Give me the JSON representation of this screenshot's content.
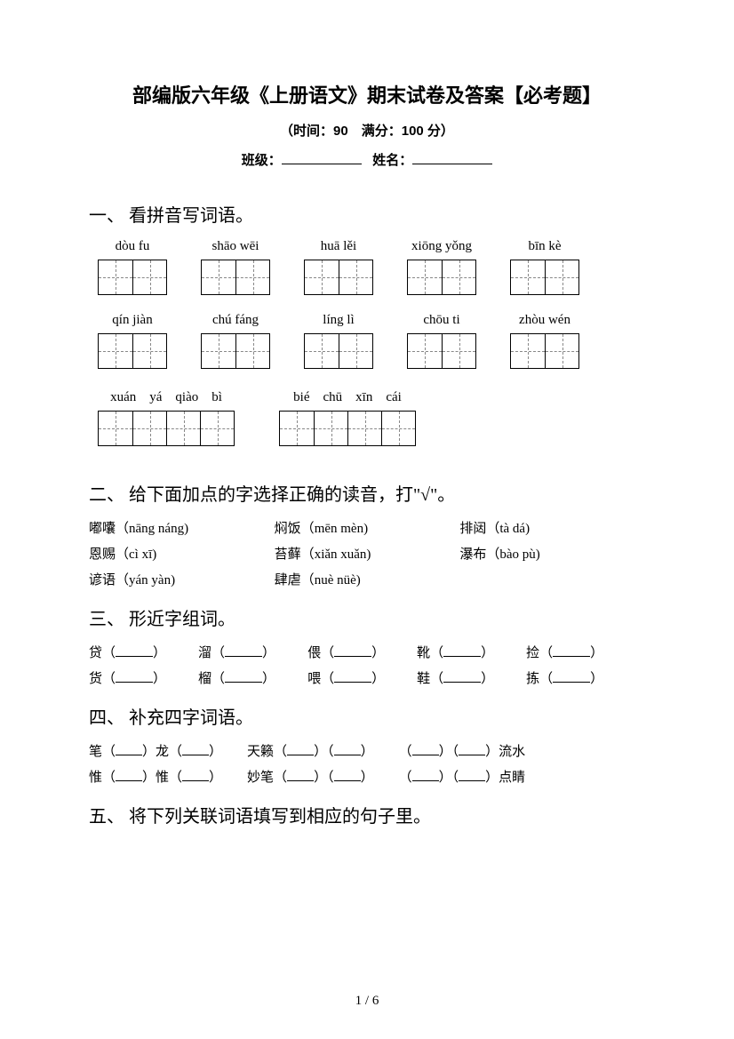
{
  "header": {
    "title": "部编版六年级《上册语文》期末试卷及答案【必考题】",
    "subtitle": "（时间：90　满分：100 分）",
    "class_label": "班级：",
    "name_label": "姓名："
  },
  "section1": {
    "title": "一、 看拼音写词语。",
    "rows": [
      [
        {
          "pinyin": "dòu fu",
          "cells": 2
        },
        {
          "pinyin": "shāo wēi",
          "cells": 2
        },
        {
          "pinyin": "huā lěi",
          "cells": 2
        },
        {
          "pinyin": "xiōng yǒng",
          "cells": 2
        },
        {
          "pinyin": "bīn kè",
          "cells": 2
        }
      ],
      [
        {
          "pinyin": "qín jiàn",
          "cells": 2
        },
        {
          "pinyin": "chú fáng",
          "cells": 2
        },
        {
          "pinyin": "líng lì",
          "cells": 2
        },
        {
          "pinyin": "chōu ti",
          "cells": 2
        },
        {
          "pinyin": "zhòu wén",
          "cells": 2
        }
      ],
      [
        {
          "pinyin": "xuán　yá　qiào　bì",
          "cells": 4
        },
        {
          "pinyin": "bié　chū　xīn　cái",
          "cells": 4
        }
      ]
    ]
  },
  "section2": {
    "title": "二、 给下面加点的字选择正确的读音，打\"√\"。",
    "items": [
      [
        {
          "word": "嘟囔",
          "reading": "nāng náng"
        },
        {
          "word": "焖饭",
          "reading": "mēn mèn"
        },
        {
          "word": "排闼",
          "reading": "tà dá"
        }
      ],
      [
        {
          "word": "恩赐",
          "reading": "cì xī"
        },
        {
          "word": "苔藓",
          "reading": "xiǎn xuǎn"
        },
        {
          "word": "瀑布",
          "reading": "bào pù"
        }
      ],
      [
        {
          "word": "谚语",
          "reading": "yán yàn"
        },
        {
          "word": "肆虐",
          "reading": "nuè nüè"
        }
      ]
    ]
  },
  "section3": {
    "title": "三、 形近字组词。",
    "rows": [
      [
        "贷",
        "溜",
        "偎",
        "靴",
        "捡"
      ],
      [
        "货",
        "榴",
        "喂",
        "鞋",
        "拣"
      ]
    ]
  },
  "section4": {
    "title": "四、 补充四字词语。",
    "rows": [
      [
        {
          "parts": [
            "笔（",
            "）龙（",
            "）"
          ]
        },
        {
          "parts": [
            "天籁（",
            "）（",
            "）"
          ]
        },
        {
          "parts": [
            "（",
            "）（",
            "）流水"
          ]
        }
      ],
      [
        {
          "parts": [
            "惟（",
            "）惟（",
            "）"
          ]
        },
        {
          "parts": [
            "妙笔（",
            "）（",
            "）"
          ]
        },
        {
          "parts": [
            "（",
            "）（",
            "）点睛"
          ]
        }
      ]
    ]
  },
  "section5": {
    "title": "五、 将下列关联词语填写到相应的句子里。"
  },
  "footer": {
    "page": "1 / 6"
  },
  "colors": {
    "text": "#000000",
    "background": "#ffffff",
    "dash": "#888888"
  }
}
